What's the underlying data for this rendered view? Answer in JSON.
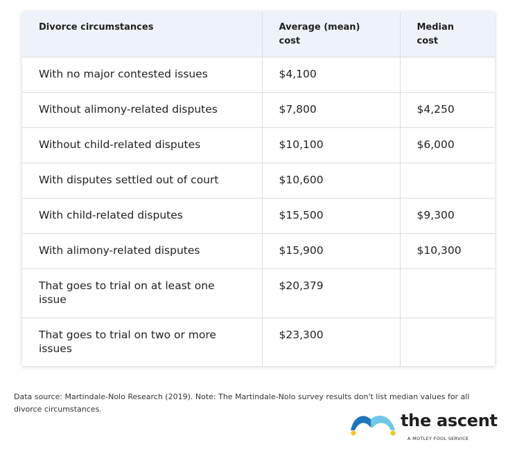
{
  "table": {
    "headers": [
      "Divorce circumstances",
      "Average (mean) cost",
      "Median cost"
    ],
    "rows": [
      {
        "circumstance": "With no major contested issues",
        "mean": "$4,100",
        "median": ""
      },
      {
        "circumstance": "Without alimony-related disputes",
        "mean": "$7,800",
        "median": "$4,250"
      },
      {
        "circumstance": "Without child-related disputes",
        "mean": "$10,100",
        "median": "$6,000"
      },
      {
        "circumstance": "With disputes settled out of court",
        "mean": "$10,600",
        "median": ""
      },
      {
        "circumstance": "With child-related disputes",
        "mean": "$15,500",
        "median": "$9,300"
      },
      {
        "circumstance": "With alimony-related disputes",
        "mean": "$15,900",
        "median": "$10,300"
      },
      {
        "circumstance": "That goes to trial on at least one issue",
        "mean": "$20,379",
        "median": ""
      },
      {
        "circumstance": "That goes to trial on two or more issues",
        "mean": "$23,300",
        "median": ""
      }
    ]
  },
  "footnote": "Data source: Martindale-Nolo Research (2019). Note: The Martindale-Nolo survey results don't list median values for all divorce circumstances.",
  "logo": {
    "name": "the ascent",
    "tagline": "A MOTLEY FOOL SERVICE",
    "colors": {
      "blue": "#1b75bc",
      "light_blue": "#6ec6e8",
      "yellow": "#f5c518"
    }
  }
}
